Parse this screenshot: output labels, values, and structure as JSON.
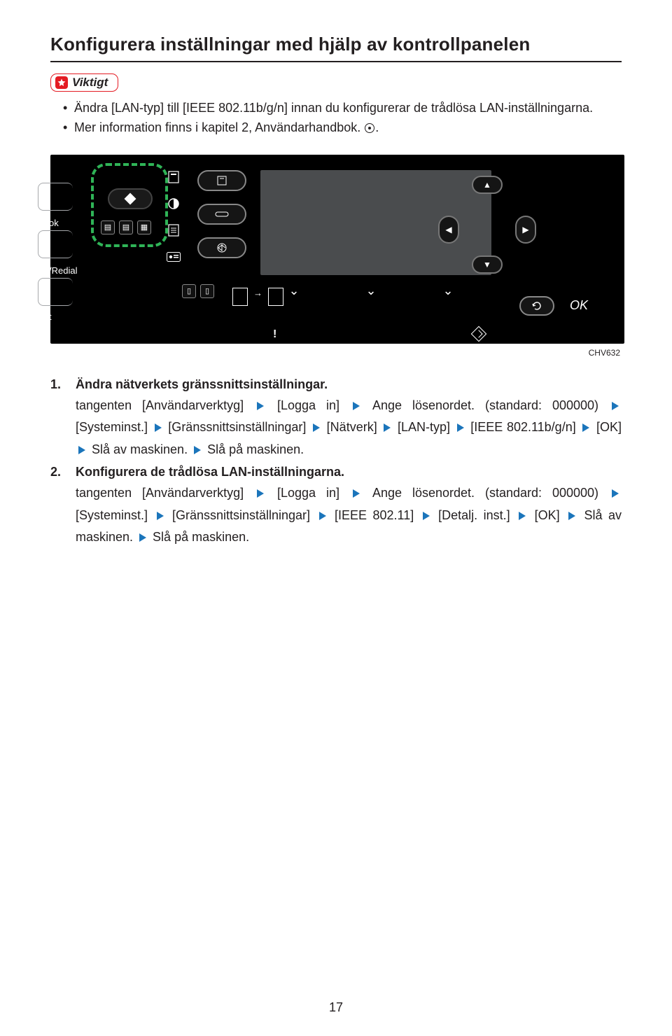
{
  "title": "Konfigurera inställningar med hjälp av kontrollpanelen",
  "badge": {
    "label": "Viktigt"
  },
  "bullets": [
    "Ändra [LAN-typ] till [IEEE 802.11b/g/n] innan du konfigurerar de trådlösa LAN-inställningarna.",
    "Mer information finns i kapitel 2, Användarhandbok."
  ],
  "panel": {
    "side_labels": [
      "ok",
      "/Redial",
      "t"
    ],
    "ok_label": "OK",
    "caption": "CHV632"
  },
  "arrow_color": "#1b75bb",
  "steps": [
    {
      "num": "1.",
      "title": "Ändra nätverkets gränssnittsinställningar.",
      "segments": [
        {
          "t": "tangenten [Användarverktyg]"
        },
        {
          "a": true
        },
        {
          "t": "[Logga in]"
        },
        {
          "a": true
        },
        {
          "t": "Ange lösenordet. (standard: 000000)"
        },
        {
          "a": true
        },
        {
          "t": "[Systeminst.]"
        },
        {
          "a": true
        },
        {
          "t": "[Gränssnittsinställningar]"
        },
        {
          "a": true
        },
        {
          "t": "[Nätverk]"
        },
        {
          "a": true
        },
        {
          "t": "[LAN-typ]"
        },
        {
          "a": true
        },
        {
          "t": "[IEEE 802.11b/g/n]"
        },
        {
          "a": true
        },
        {
          "t": "[OK]"
        },
        {
          "a": true
        },
        {
          "t": "Slå av maskinen."
        },
        {
          "a": true
        },
        {
          "t": "Slå på maskinen."
        }
      ]
    },
    {
      "num": "2.",
      "title": "Konfigurera de trådlösa LAN-inställningarna.",
      "segments": [
        {
          "t": "tangenten [Användarverktyg]"
        },
        {
          "a": true
        },
        {
          "t": "[Logga in]"
        },
        {
          "a": true
        },
        {
          "t": "Ange lösenordet. (standard: 000000)"
        },
        {
          "a": true
        },
        {
          "t": "[Systeminst.]"
        },
        {
          "a": true
        },
        {
          "t": "[Gränssnittsinställningar]"
        },
        {
          "a": true
        },
        {
          "t": "[IEEE 802.11]"
        },
        {
          "a": true
        },
        {
          "t": "[Detalj. inst.]"
        },
        {
          "a": true
        },
        {
          "t": "[OK]"
        },
        {
          "a": true
        },
        {
          "t": "Slå av maskinen."
        },
        {
          "a": true
        },
        {
          "t": "Slå på maskinen."
        }
      ]
    }
  ],
  "page_number": "17"
}
